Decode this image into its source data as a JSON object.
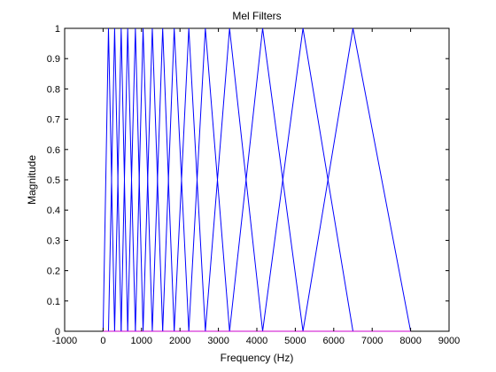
{
  "chart_data": {
    "type": "line",
    "title": "Mel Filters",
    "xlabel": "Frequency (Hz)",
    "ylabel": "Magnitude",
    "xlim": [
      -1000,
      9000
    ],
    "ylim": [
      0,
      1
    ],
    "xticks": [
      -1000,
      0,
      1000,
      2000,
      3000,
      4000,
      5000,
      6000,
      7000,
      8000,
      9000
    ],
    "yticks": [
      0,
      0.1,
      0.2,
      0.3,
      0.4,
      0.5,
      0.6,
      0.7,
      0.8,
      0.9,
      1
    ],
    "grid": false,
    "line_color": "#0000ff",
    "baseline_color": "#cc00cc",
    "band_edges_hz": [
      0,
      140,
      300,
      470,
      640,
      840,
      1040,
      1280,
      1550,
      1850,
      2230,
      2660,
      3290,
      4150,
      5200,
      6500,
      8000
    ],
    "filter_peak": 1
  }
}
